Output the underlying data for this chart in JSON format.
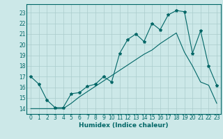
{
  "xlabel": "Humidex (Indice chaleur)",
  "background_color": "#cce8e8",
  "grid_color": "#aacccc",
  "line_color": "#006666",
  "xlim": [
    -0.5,
    23.5
  ],
  "ylim": [
    13.5,
    23.8
  ],
  "yticks": [
    14,
    15,
    16,
    17,
    18,
    19,
    20,
    21,
    22,
    23
  ],
  "xticks": [
    0,
    1,
    2,
    3,
    4,
    5,
    6,
    7,
    8,
    9,
    10,
    11,
    12,
    13,
    14,
    15,
    16,
    17,
    18,
    19,
    20,
    21,
    22,
    23
  ],
  "series1_x": [
    0,
    1,
    2,
    3,
    4,
    5,
    6,
    7,
    8,
    9,
    10,
    11,
    12,
    13,
    14,
    15,
    16,
    17,
    18,
    19,
    20,
    21,
    22,
    23
  ],
  "series1_y": [
    17.0,
    16.3,
    14.8,
    14.1,
    14.1,
    15.4,
    15.5,
    16.1,
    16.3,
    17.0,
    16.5,
    19.2,
    20.5,
    21.0,
    20.3,
    22.0,
    21.4,
    22.8,
    23.2,
    23.1,
    19.2,
    21.3,
    18.0,
    16.2
  ],
  "series2_x": [
    0,
    1,
    2,
    3,
    4,
    5,
    6,
    7,
    8,
    9,
    10,
    11,
    12,
    13,
    14,
    15,
    16,
    17,
    18,
    19,
    20,
    21,
    22,
    23
  ],
  "series2_y": [
    14.0,
    14.0,
    14.0,
    14.0,
    14.0,
    14.5,
    15.1,
    15.6,
    16.1,
    16.6,
    17.1,
    17.6,
    18.1,
    18.6,
    19.1,
    19.5,
    20.1,
    20.6,
    21.1,
    19.3,
    18.0,
    16.5,
    16.2,
    14.5
  ]
}
